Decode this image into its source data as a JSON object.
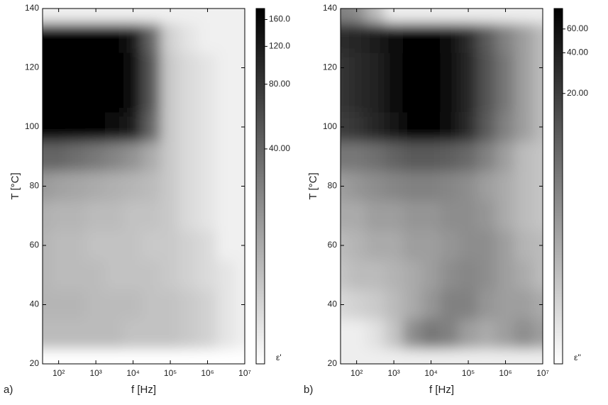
{
  "chart_data": [
    {
      "type": "heatmap",
      "panel_label": "a)",
      "xlabel": "f [Hz]",
      "ylabel": "T [°C]",
      "colorbar_label": "ε'",
      "xscale": "log",
      "xlim": [
        37,
        10000000
      ],
      "xticks": [
        {
          "value": 100,
          "label": "10²"
        },
        {
          "value": 1000,
          "label": "10³"
        },
        {
          "value": 10000,
          "label": "10⁴"
        },
        {
          "value": 100000,
          "label": "10⁵"
        },
        {
          "value": 1000000,
          "label": "10⁶"
        },
        {
          "value": 10000000,
          "label": "10⁷"
        }
      ],
      "ylim": [
        20,
        140
      ],
      "yticks": [
        20,
        40,
        60,
        80,
        100,
        120,
        140
      ],
      "zscale": "log",
      "zlim": [
        4,
        180
      ],
      "zticks": [
        {
          "value": 40,
          "label": "40.00"
        },
        {
          "value": 80,
          "label": "80.00"
        },
        {
          "value": 120,
          "label": "120.0"
        },
        {
          "value": 160,
          "label": "160.0"
        }
      ],
      "colors": [
        "#ffffff",
        "#000000"
      ],
      "x": [
        40,
        100,
        300,
        1000,
        3000,
        10000,
        30000,
        100000,
        300000,
        1000000,
        3000000,
        10000000
      ],
      "y": [
        140,
        130,
        120,
        110,
        100,
        90,
        80,
        70,
        60,
        50,
        40,
        30,
        20
      ],
      "z": [
        [
          5,
          5,
          5,
          5,
          5,
          5,
          5,
          5,
          5,
          5,
          5,
          5
        ],
        [
          180,
          180,
          180,
          180,
          170,
          130,
          40,
          8,
          6,
          5,
          5,
          5
        ],
        [
          180,
          180,
          180,
          180,
          180,
          150,
          50,
          9,
          7,
          6,
          5,
          5
        ],
        [
          180,
          180,
          180,
          180,
          180,
          150,
          50,
          9,
          7,
          6,
          5,
          5
        ],
        [
          170,
          170,
          170,
          170,
          160,
          120,
          40,
          9,
          7,
          6,
          5,
          5
        ],
        [
          40,
          40,
          35,
          30,
          25,
          20,
          14,
          9,
          7,
          6,
          5,
          5
        ],
        [
          18,
          16,
          15,
          14,
          13,
          12,
          11,
          9,
          7,
          6,
          5,
          5
        ],
        [
          13,
          12,
          12,
          11,
          11,
          10,
          10,
          9,
          7,
          6,
          5,
          5
        ],
        [
          12,
          11,
          11,
          10,
          10,
          10,
          9,
          9,
          8,
          7,
          5,
          5
        ],
        [
          12,
          11,
          11,
          11,
          10,
          10,
          10,
          9,
          8,
          7,
          6,
          5
        ],
        [
          12,
          12,
          12,
          11,
          11,
          11,
          10,
          10,
          9,
          8,
          6,
          5
        ],
        [
          11,
          11,
          11,
          11,
          11,
          10,
          10,
          10,
          9,
          8,
          6,
          5
        ],
        [
          4,
          4,
          4,
          4,
          4,
          4,
          4,
          4,
          4,
          4,
          4,
          4
        ]
      ]
    },
    {
      "type": "heatmap",
      "panel_label": "b)",
      "xlabel": "f [Hz]",
      "ylabel": "T [°C]",
      "colorbar_label": "ε''",
      "xscale": "log",
      "xlim": [
        37,
        10000000
      ],
      "xticks": [
        {
          "value": 100,
          "label": "10²"
        },
        {
          "value": 1000,
          "label": "10³"
        },
        {
          "value": 10000,
          "label": "10⁴"
        },
        {
          "value": 100000,
          "label": "10⁵"
        },
        {
          "value": 1000000,
          "label": "10⁶"
        },
        {
          "value": 10000000,
          "label": "10⁷"
        }
      ],
      "ylim": [
        20,
        140
      ],
      "yticks": [
        20,
        40,
        60,
        80,
        100,
        120,
        140
      ],
      "zscale": "log",
      "zlim": [
        0.2,
        85
      ],
      "zticks": [
        {
          "value": 20,
          "label": "20.00"
        },
        {
          "value": 40,
          "label": "40.00"
        },
        {
          "value": 60,
          "label": "60.00"
        }
      ],
      "colors": [
        "#ffffff",
        "#000000"
      ],
      "x": [
        40,
        100,
        300,
        1000,
        3000,
        10000,
        30000,
        100000,
        300000,
        1000000,
        3000000,
        10000000
      ],
      "y": [
        140,
        130,
        120,
        110,
        100,
        90,
        80,
        70,
        60,
        50,
        40,
        30,
        20
      ],
      "z": [
        [
          4,
          3,
          1,
          0.3,
          0.3,
          0.3,
          0.3,
          0.3,
          0.3,
          0.3,
          0.3,
          0.3
        ],
        [
          30,
          35,
          45,
          60,
          75,
          80,
          60,
          30,
          10,
          4,
          2,
          1
        ],
        [
          25,
          30,
          40,
          60,
          80,
          85,
          70,
          35,
          12,
          5,
          2,
          1
        ],
        [
          25,
          30,
          40,
          60,
          80,
          85,
          70,
          35,
          12,
          5,
          2,
          1
        ],
        [
          20,
          25,
          35,
          55,
          75,
          80,
          60,
          30,
          10,
          4,
          2,
          1
        ],
        [
          5,
          5,
          6,
          8,
          10,
          10,
          9,
          7,
          4,
          2,
          1,
          0.8
        ],
        [
          2,
          2.5,
          3,
          3.5,
          4,
          4,
          3.5,
          3,
          2,
          1.5,
          1,
          0.8
        ],
        [
          1.5,
          1.5,
          2,
          2,
          2.5,
          2.5,
          3,
          3,
          2.5,
          1.5,
          1,
          0.8
        ],
        [
          1,
          1.2,
          1.5,
          1.5,
          2,
          2,
          2.5,
          3,
          3,
          2,
          1.2,
          1
        ],
        [
          0.8,
          1,
          1,
          1.2,
          1.5,
          2,
          3,
          3.5,
          3,
          2,
          1.5,
          1
        ],
        [
          0.5,
          0.6,
          0.7,
          1,
          1.5,
          2.5,
          4,
          4,
          2.5,
          2,
          2,
          1.5
        ],
        [
          0.3,
          0.3,
          0.4,
          0.8,
          3,
          5,
          4,
          2,
          1.5,
          2,
          3,
          2
        ],
        [
          0.3,
          0.3,
          0.3,
          0.3,
          0.3,
          0.3,
          0.3,
          0.3,
          0.3,
          0.3,
          0.3,
          0.3
        ]
      ]
    }
  ]
}
